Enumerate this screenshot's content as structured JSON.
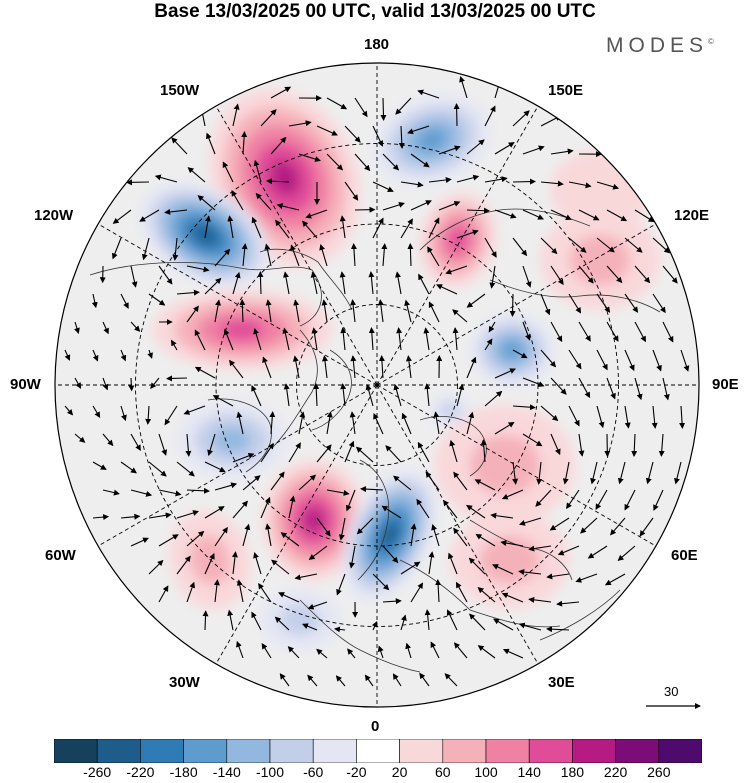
{
  "header": {
    "title": "Base 13/03/2025 00 UTC, valid 13/03/2025 00 UTC",
    "brand": "MODES",
    "brand_mark": "©"
  },
  "longitude_labels": {
    "top": "180",
    "bottom": "0",
    "left": "90W",
    "right": "90E",
    "w150": "150W",
    "e150": "150E",
    "w120": "120W",
    "e120": "120E",
    "w60": "60W",
    "e60": "60E",
    "w30": "30W",
    "e30": "30E"
  },
  "reference_vector": {
    "label": "30"
  },
  "colorbar": {
    "ticks": [
      "-260",
      "-220",
      "-180",
      "-140",
      "-100",
      "-60",
      "-20",
      "20",
      "60",
      "100",
      "140",
      "180",
      "220",
      "260"
    ],
    "colors": [
      "#15405e",
      "#1e5c8c",
      "#2f7bb5",
      "#5e9cd0",
      "#93b8e0",
      "#c3cfe9",
      "#e4e6f4",
      "#ffffff",
      "#f9d8da",
      "#f5b1ba",
      "#f081a4",
      "#e04c98",
      "#b61b84",
      "#7c0c77",
      "#4f0a6e"
    ]
  },
  "map": {
    "projection": "north-polar-stereographic",
    "field": "geopotential height anomaly",
    "anomaly_centres": [
      {
        "sign": "positive",
        "value_class": "220"
      },
      {
        "sign": "negative",
        "value_class": "-220"
      },
      {
        "sign": "negative",
        "value_class": "-140"
      },
      {
        "sign": "positive",
        "value_class": "180"
      },
      {
        "sign": "positive",
        "value_class": "180"
      },
      {
        "sign": "negative",
        "value_class": "-140"
      },
      {
        "sign": "positive",
        "value_class": "220"
      },
      {
        "sign": "negative",
        "value_class": "-220"
      },
      {
        "sign": "negative",
        "value_class": "-100"
      },
      {
        "sign": "positive",
        "value_class": "100"
      },
      {
        "sign": "positive",
        "value_class": "100"
      },
      {
        "sign": "positive",
        "value_class": "100"
      },
      {
        "sign": "positive",
        "value_class": "60"
      },
      {
        "sign": "negative",
        "value_class": "-60"
      },
      {
        "sign": "positive",
        "value_class": "100"
      },
      {
        "sign": "negative",
        "value_class": "-60"
      }
    ],
    "colors": {
      "coast": "#333333",
      "graticule": "#000000",
      "arrow": "#000000",
      "background": "#eeeeef"
    }
  }
}
